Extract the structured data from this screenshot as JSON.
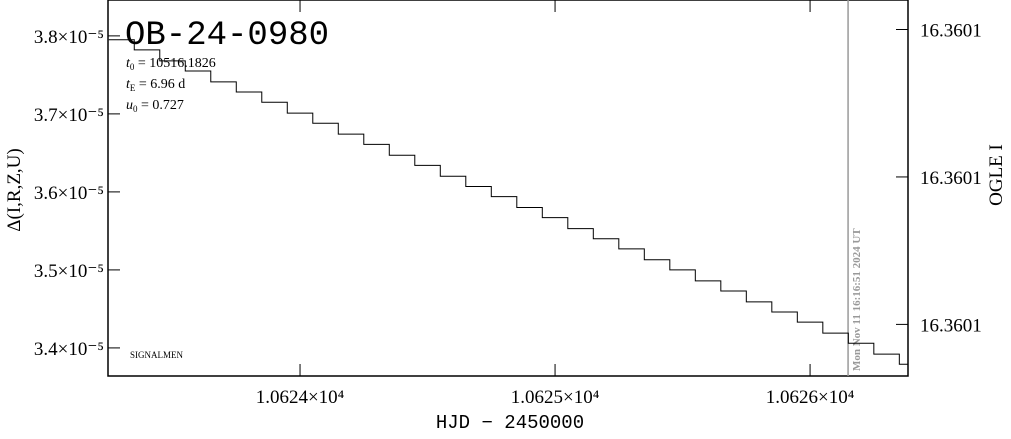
{
  "chart_data": {
    "type": "line",
    "title": "OB-24-0980",
    "parameters": [
      {
        "symbol": "t",
        "subscript": "0",
        "text": " = 10516.1826"
      },
      {
        "symbol": "t",
        "subscript": "E",
        "text": " = 6.96 d"
      },
      {
        "symbol": "u",
        "subscript": "0",
        "text": " = 0.727"
      }
    ],
    "x_label": "HJD − 2450000",
    "y_label": "Δ(I,R,Z,U)",
    "y2_label": "OGLE I",
    "footnote": "SIGNALMEN",
    "step": true,
    "marker_line": {
      "x": 10626.149,
      "label": "Mon Nov 11 16:16:51 2024 UT",
      "color": "#999999"
    },
    "xlim": [
      10623.247,
      10626.384
    ],
    "xticks": [
      {
        "value": 10624,
        "label": "1.0624×10⁴"
      },
      {
        "value": 10625,
        "label": "1.0625×10⁴"
      },
      {
        "value": 10626,
        "label": "1.0626×10⁴"
      }
    ],
    "ylim": [
      3.364e-05,
      3.846e-05
    ],
    "yticks": [
      {
        "value": 3.4e-05,
        "label": "3.4×10⁻⁵"
      },
      {
        "value": 3.5e-05,
        "label": "3.5×10⁻⁵"
      },
      {
        "value": 3.6e-05,
        "label": "3.6×10⁻⁵"
      },
      {
        "value": 3.7e-05,
        "label": "3.7×10⁻⁵"
      },
      {
        "value": 3.8e-05,
        "label": "3.8×10⁻⁵"
      }
    ],
    "y2lim": [
      16.360107,
      16.360056
    ],
    "y2ticks": [
      {
        "value": 16.36006,
        "label": "16.3601"
      },
      {
        "value": 16.36008,
        "label": "16.3601"
      },
      {
        "value": 16.3601,
        "label": "16.3601"
      }
    ],
    "series": [
      {
        "name": "OGLE I",
        "color": "#000000",
        "x": [
          10623.25,
          10623.35,
          10623.45,
          10623.55,
          10623.65,
          10623.75,
          10623.85,
          10623.95,
          10624.05,
          10624.15,
          10624.25,
          10624.35,
          10624.45,
          10624.55,
          10624.65,
          10624.75,
          10624.85,
          10624.95,
          10625.05,
          10625.15,
          10625.25,
          10625.35,
          10625.45,
          10625.55,
          10625.65,
          10625.75,
          10625.85,
          10625.95,
          10626.05,
          10626.15,
          10626.25,
          10626.35
        ],
        "values": [
          3.795e-05,
          3.782e-05,
          3.768e-05,
          3.755e-05,
          3.741e-05,
          3.728e-05,
          3.715e-05,
          3.701e-05,
          3.688e-05,
          3.674e-05,
          3.661e-05,
          3.647e-05,
          3.634e-05,
          3.62e-05,
          3.607e-05,
          3.594e-05,
          3.58e-05,
          3.567e-05,
          3.553e-05,
          3.54e-05,
          3.527e-05,
          3.513e-05,
          3.5e-05,
          3.486e-05,
          3.473e-05,
          3.459e-05,
          3.446e-05,
          3.433e-05,
          3.419e-05,
          3.406e-05,
          3.392e-05,
          3.379e-05
        ]
      }
    ]
  }
}
